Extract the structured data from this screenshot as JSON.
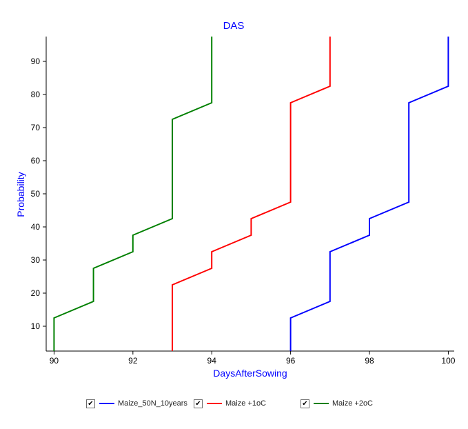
{
  "chart_data": {
    "type": "line",
    "title": "DAS",
    "xlabel": "DaysAfterSowing",
    "ylabel": "Probability",
    "xlim": [
      89.8,
      100.15
    ],
    "ylim": [
      2.5,
      97.5
    ],
    "xticks": [
      90,
      92,
      94,
      96,
      98,
      100
    ],
    "yticks": [
      10,
      20,
      30,
      40,
      50,
      60,
      70,
      80,
      90
    ],
    "grid": false,
    "legend_position": "bottom",
    "series": [
      {
        "name": "Maize_50N_10years",
        "color": "#0000ff",
        "points": [
          [
            96,
            2.5
          ],
          [
            96,
            12.5
          ],
          [
            97,
            17.5
          ],
          [
            97,
            32.5
          ],
          [
            98,
            37.5
          ],
          [
            98,
            42.5
          ],
          [
            99,
            47.5
          ],
          [
            99,
            77.5
          ],
          [
            100,
            82.5
          ],
          [
            100,
            97.5
          ]
        ]
      },
      {
        "name": "Maize +1oC",
        "color": "#ff0000",
        "points": [
          [
            93,
            2.5
          ],
          [
            93,
            22.5
          ],
          [
            94,
            27.5
          ],
          [
            94,
            32.5
          ],
          [
            95,
            37.5
          ],
          [
            95,
            42.5
          ],
          [
            96,
            47.5
          ],
          [
            96,
            77.5
          ],
          [
            97,
            82.5
          ],
          [
            97,
            97.5
          ]
        ]
      },
      {
        "name": "Maize +2oC",
        "color": "#008000",
        "points": [
          [
            90,
            2.5
          ],
          [
            90,
            12.5
          ],
          [
            91,
            17.5
          ],
          [
            91,
            27.5
          ],
          [
            92,
            32.5
          ],
          [
            92,
            37.5
          ],
          [
            93,
            42.5
          ],
          [
            93,
            72.5
          ],
          [
            94,
            77.5
          ],
          [
            94,
            97.5
          ]
        ]
      }
    ]
  },
  "legend": {
    "check_symbol": "✔",
    "items": [
      {
        "label": "Maize_50N_10years",
        "color": "#0000ff"
      },
      {
        "label": "Maize +1oC",
        "color": "#ff0000"
      },
      {
        "label": "Maize +2oC",
        "color": "#008000"
      }
    ]
  },
  "colors": {
    "title": "#0000ff",
    "axis_label": "#0000ff",
    "axis": "#000000",
    "tick_label": "#000000"
  }
}
